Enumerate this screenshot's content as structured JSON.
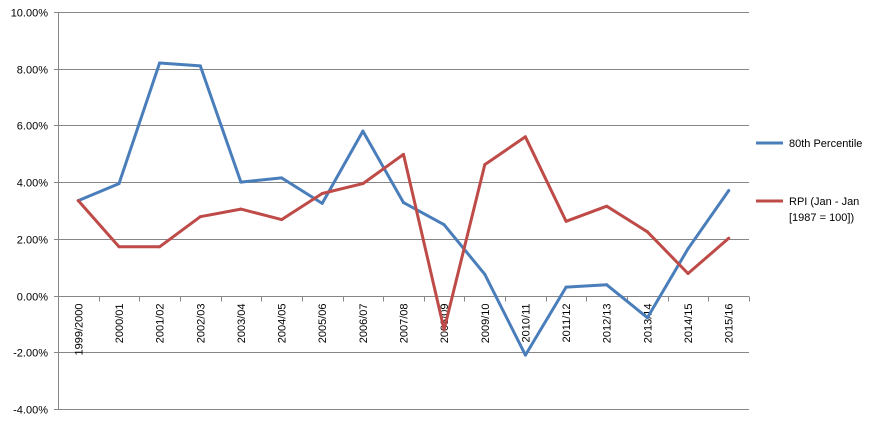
{
  "chart_data": {
    "type": "line",
    "title": "",
    "xlabel": "",
    "ylabel": "",
    "categories": [
      "1999/2000",
      "2000/01",
      "2001/02",
      "2002/03",
      "2003/04",
      "2004/05",
      "2005/06",
      "2006/07",
      "2007/08",
      "2008/09",
      "2009/10",
      "2010/11",
      "2011/12",
      "2012/13",
      "2013/14",
      "2014/15",
      "2015/16"
    ],
    "ylim": [
      -4,
      10
    ],
    "yticks": [
      -4,
      -2,
      0,
      2,
      4,
      6,
      8,
      10
    ],
    "ytick_labels": [
      "-4.00%",
      "-2.00%",
      "0.00%",
      "2.00%",
      "4.00%",
      "6.00%",
      "8.00%",
      "10.00%"
    ],
    "grid": true,
    "legend_position": "right",
    "series": [
      {
        "name": "80th Percentile",
        "color": "#4A7EBB",
        "values": [
          3.35,
          3.95,
          8.2,
          8.1,
          4.0,
          4.15,
          3.25,
          5.8,
          3.28,
          2.5,
          0.75,
          -2.1,
          0.3,
          0.38,
          -0.78,
          1.65,
          3.7
        ]
      },
      {
        "name": "RPI (Jan - Jan [1987 = 100])",
        "legend_lines": [
          "RPI (Jan - Jan",
          "[1987 = 100])"
        ],
        "color": "#BE4B48",
        "values": [
          3.35,
          1.72,
          1.72,
          2.78,
          3.05,
          2.68,
          3.6,
          3.95,
          4.98,
          -1.2,
          4.62,
          5.6,
          2.62,
          3.15,
          2.25,
          0.78,
          2.02
        ]
      }
    ]
  }
}
